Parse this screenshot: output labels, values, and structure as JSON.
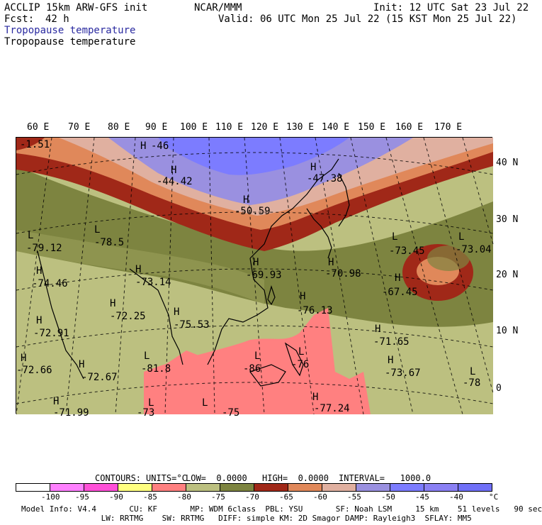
{
  "header": {
    "model": "ACCLIP 15km ARW-GFS init",
    "org": "NCAR/MMM",
    "init": "Init: 12 UTC Sat 23 Jul 22",
    "fcst_label": "Fcst:",
    "fcst_value": "42 h",
    "valid": "Valid: 06 UTC Mon 25 Jul 22 (15 KST Mon 25 Jul 22)",
    "subtitle_blue": "Tropopause temperature",
    "subtitle_black": "Tropopause temperature"
  },
  "map": {
    "lon_labels": [
      "60 E",
      "70 E",
      "80 E",
      "90 E",
      "100 E",
      "110 E",
      "120 E",
      "130 E",
      "140 E",
      "150 E",
      "160 E",
      "170 E"
    ],
    "lat_labels": [
      "40 N",
      "30 N",
      "20 N",
      "10 N",
      "0"
    ],
    "points": [
      {
        "mark": "H",
        "value": "-46"
      },
      {
        "mark": "H",
        "value": "-44.42"
      },
      {
        "mark": "H",
        "value": "-47.38"
      },
      {
        "mark": "H",
        "value": "-50.59"
      },
      {
        "mark": "L",
        "value": "-79.12"
      },
      {
        "mark": "L",
        "value": "-78.5"
      },
      {
        "mark": "H",
        "value": "-74.46"
      },
      {
        "mark": "H",
        "value": "-73.14"
      },
      {
        "mark": "H",
        "value": "-72.25"
      },
      {
        "mark": "H",
        "value": "-75.53"
      },
      {
        "mark": "H",
        "value": "-72.91"
      },
      {
        "mark": "H",
        "value": "-69.93"
      },
      {
        "mark": "H",
        "value": "-70.98"
      },
      {
        "mark": "L",
        "value": "-73.45"
      },
      {
        "mark": "L",
        "value": "-73.04"
      },
      {
        "mark": "H",
        "value": "-67.45"
      },
      {
        "mark": "H",
        "value": "-76.13"
      },
      {
        "mark": "H",
        "value": "-71.65"
      },
      {
        "mark": "H",
        "value": "-73.67"
      },
      {
        "mark": "L",
        "value": "-78"
      },
      {
        "mark": "H",
        "value": "-72.66"
      },
      {
        "mark": "H",
        "value": "-72.67"
      },
      {
        "mark": "L",
        "value": "-81.8"
      },
      {
        "mark": "L",
        "value": "-86"
      },
      {
        "mark": "L",
        "value": "-76"
      },
      {
        "mark": "H",
        "value": "-77.24"
      },
      {
        "mark": "H",
        "value": "-71.99"
      },
      {
        "mark": "L",
        "value": "-73"
      },
      {
        "mark": "L",
        "value": "-75"
      },
      {
        "mark": "L",
        "value": "-1.51"
      }
    ]
  },
  "contours": {
    "label": "CONTOURS:",
    "units": "UNITS=°C",
    "low": "LOW=  0.0000",
    "high": "HIGH=  0.0000",
    "interval": "INTERVAL=   1000.0"
  },
  "legend": {
    "colors": [
      "#ffffff",
      "#ff80ff",
      "#ff50d8",
      "#ffff80",
      "#ff8080",
      "#bcc080",
      "#7d8440",
      "#a02818",
      "#e0885a",
      "#e0b0a0",
      "#9a90e0",
      "#7c7cff",
      "#8a80f4",
      "#7070f8"
    ],
    "ticks": [
      "-100",
      "-95",
      "-90",
      "-85",
      "-80",
      "-75",
      "-70",
      "-65",
      "-60",
      "-55",
      "-50",
      "-45",
      "-40"
    ],
    "unit": "°C"
  },
  "info": {
    "line1": "Model Info: V4.4       CU: KF       MP: WDM 6class  PBL: YSU       SF: Noah LSM     15 km    51 levels   90 sec",
    "line2": "                 LW: RRTMG    SW: RRTMG   DIFF: simple KM: 2D Smagor DAMP: Rayleigh3  SFLAY: MM5"
  }
}
